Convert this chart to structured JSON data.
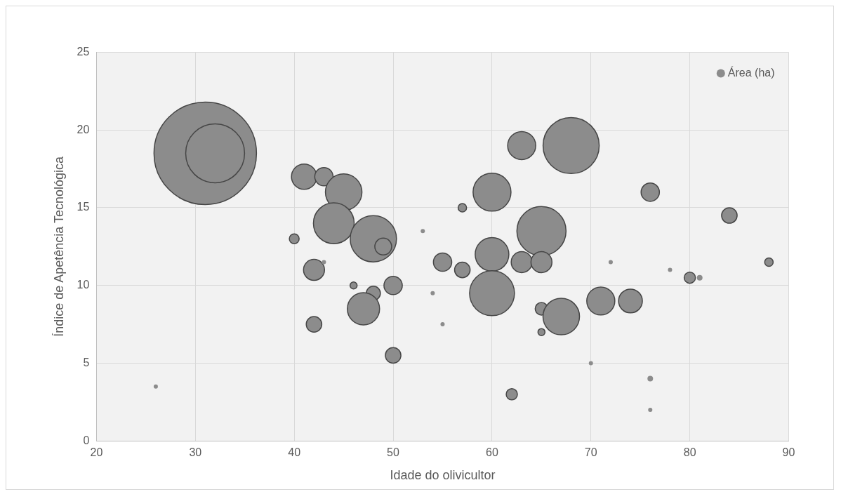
{
  "chart_data": {
    "type": "bubble",
    "xlabel": "Idade do olivicultor",
    "ylabel": "Índice de Apetência Tecnológica",
    "xlim": [
      20,
      90
    ],
    "xticks": [
      20,
      30,
      40,
      50,
      60,
      70,
      80,
      90
    ],
    "ylim": [
      0,
      25
    ],
    "yticks": [
      0,
      5,
      10,
      15,
      20,
      25
    ],
    "grid": true,
    "legend": "top right",
    "series": [
      {
        "name": "Área (ha)",
        "color": "#8c8c8c",
        "x": [
          31,
          32,
          41,
          43,
          45,
          44,
          48,
          49,
          40,
          53,
          42,
          42,
          43,
          46,
          48,
          50,
          47,
          42,
          50,
          26,
          55,
          57,
          57,
          60,
          60,
          60,
          63,
          68,
          65,
          63,
          65,
          65,
          67,
          65,
          71,
          74,
          76,
          84,
          88,
          72,
          78,
          80,
          81,
          62,
          70,
          76,
          76,
          55,
          54
        ],
        "values": [
          18.5,
          18.5,
          17,
          17,
          16,
          14,
          13,
          12.5,
          13,
          13.5,
          11,
          11.5,
          11.5,
          10,
          9.5,
          10,
          8.5,
          7.5,
          5.5,
          3.5,
          11.5,
          11,
          15,
          16,
          12,
          9.5,
          19,
          19,
          13.5,
          11.5,
          11.5,
          8.5,
          8,
          7,
          9,
          9,
          16,
          14.5,
          11.5,
          11.5,
          11,
          10.5,
          10.5,
          3,
          5,
          4,
          2,
          7.5,
          9.5
        ],
        "sizes": [
          1,
          0.33,
          0.061,
          0.032,
          0.127,
          0.158,
          0.204,
          0.027,
          0.0092,
          0.0017,
          0.042,
          0.0017,
          0.0017,
          0.0047,
          0.019,
          0.032,
          0.099,
          0.023,
          0.023,
          0.0017,
          0.032,
          0.023,
          0.0068,
          0.137,
          0.108,
          0.192,
          0.075,
          0.3,
          0.23,
          0.042,
          0.042,
          0.015,
          0.127,
          0.0047,
          0.075,
          0.054,
          0.032,
          0.023,
          0.0068,
          0.0017,
          0.0017,
          0.012,
          0.003,
          0.012,
          0.0017,
          0.003,
          0.0017,
          0.0017,
          0.0017
        ]
      }
    ]
  }
}
